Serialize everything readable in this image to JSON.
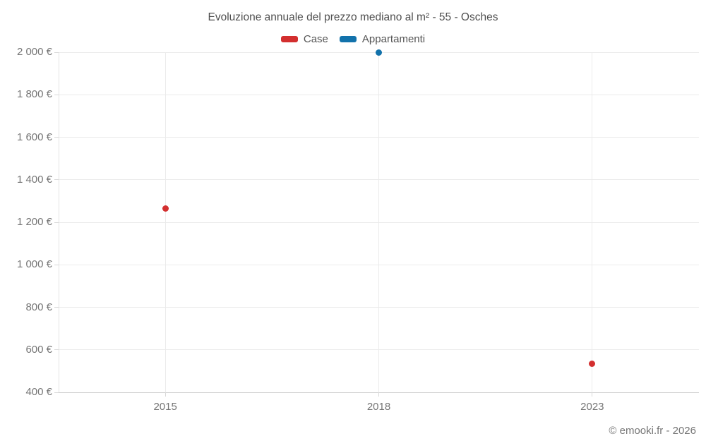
{
  "title": "Evoluzione annuale del prezzo mediano al m² - 55 - Osches",
  "footer": "© emooki.fr - 2026",
  "legend": {
    "items": [
      {
        "label": "Case",
        "color": "#d32f2f"
      },
      {
        "label": "Appartamenti",
        "color": "#1272ab"
      }
    ]
  },
  "chart_data": {
    "type": "scatter",
    "title": "Evoluzione annuale del prezzo mediano al m² - 55 - Osches",
    "categories": [
      "2015",
      "2018",
      "2023"
    ],
    "series": [
      {
        "name": "Case",
        "color": "#d32f2f",
        "points": [
          {
            "x": "2015",
            "y": 1265
          },
          {
            "x": "2023",
            "y": 535
          }
        ]
      },
      {
        "name": "Appartamenti",
        "color": "#1272ab",
        "points": [
          {
            "x": "2018",
            "y": 2000
          }
        ]
      }
    ],
    "xlabel": "",
    "ylabel": "",
    "ylim": [
      400,
      2000
    ],
    "yticks": [
      400,
      600,
      800,
      1000,
      1200,
      1400,
      1600,
      1800,
      2000
    ],
    "ytick_labels": [
      "400 €",
      "600 €",
      "800 €",
      "1 000 €",
      "1 200 €",
      "1 400 €",
      "1 600 €",
      "1 800 €",
      "2 000 €"
    ],
    "grid": true,
    "legend_position": "top"
  }
}
